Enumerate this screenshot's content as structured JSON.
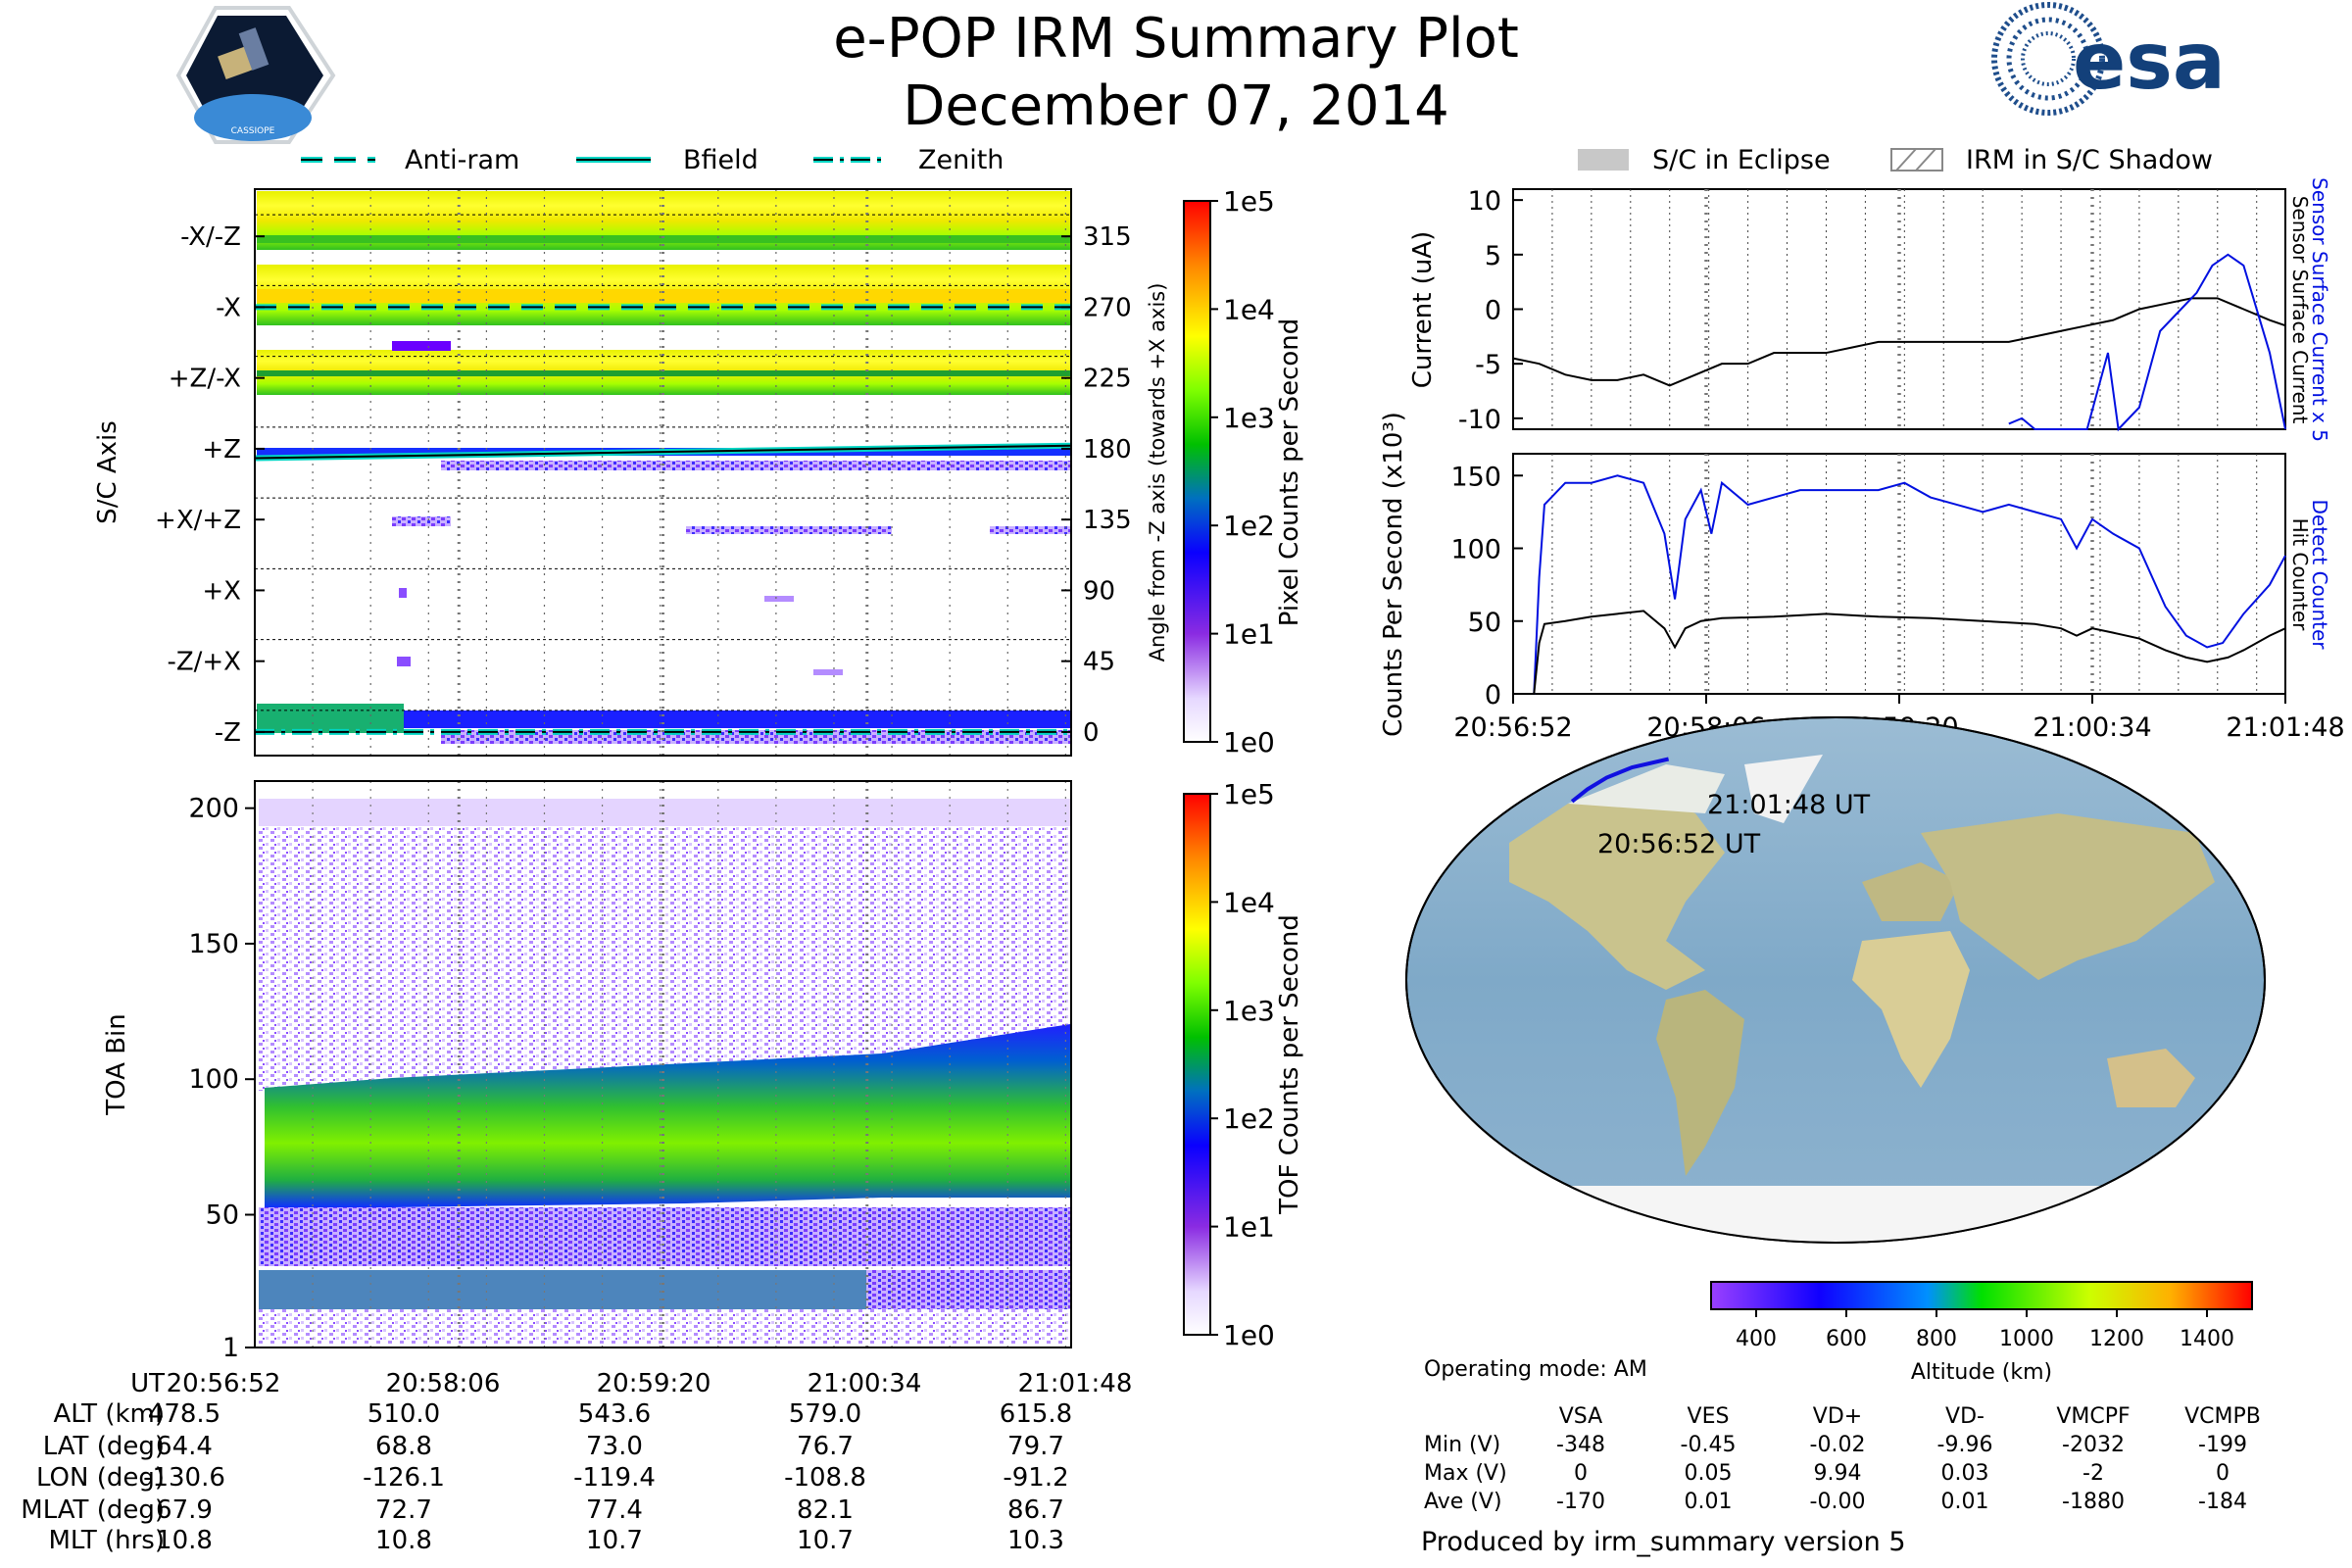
{
  "header": {
    "title": "e-POP IRM Summary Plot",
    "date": "December 07, 2014",
    "logo_left_text": "CASSIOPE",
    "logo_right_text": "esa"
  },
  "legends": {
    "left": [
      "Anti-ram",
      "Bfield",
      "Zenith"
    ],
    "right": [
      "S/C in Eclipse",
      "IRM in S/C Shadow"
    ]
  },
  "colors": {
    "cyan": "#00d5c3",
    "blue_trace": "#0010e0",
    "black_trace": "#000000",
    "shade": "#c8c8c8"
  },
  "chart_data": [
    {
      "type": "heatmap",
      "name": "pixel-angle",
      "ylabel": "S/C Axis",
      "y_tick_labels": [
        "-X/-Z",
        "-X",
        "+Z/-X",
        "+Z",
        "+X/+Z",
        "+X",
        "-Z/+X",
        "-Z"
      ],
      "y2_label": "Angle from -Z axis (towards +X axis)",
      "y2_ticks": [
        315,
        270,
        225,
        180,
        135,
        90,
        45,
        0
      ],
      "ylim": [
        -15,
        345
      ],
      "x_range_seconds": [
        0,
        296
      ],
      "x_tick_seconds": [
        0,
        74,
        148,
        222,
        296
      ],
      "colorbar": {
        "label": "Pixel Counts per Second",
        "scale": "log",
        "ticks": [
          "1e0",
          "1e1",
          "1e2",
          "1e3",
          "1e4",
          "1e5"
        ]
      },
      "lines": {
        "anti_ram_deg": 270,
        "zenith_deg": 0,
        "bfield_deg_start": 174,
        "bfield_deg_end": 182
      }
    },
    {
      "type": "heatmap",
      "name": "toa-spectrogram",
      "ylabel": "TOA Bin",
      "y_ticks": [
        1,
        50,
        100,
        150,
        200
      ],
      "ylim": [
        1,
        210
      ],
      "x_range_seconds": [
        0,
        296
      ],
      "colorbar": {
        "label": "TOF Counts per Second",
        "scale": "log",
        "ticks": [
          "1e0",
          "1e1",
          "1e2",
          "1e3",
          "1e4",
          "1e5"
        ]
      },
      "bands": [
        {
          "bin_start": 58,
          "bin_end": 62,
          "level": "high"
        },
        {
          "bin_start": 25,
          "bin_end": 22,
          "level": "medium"
        }
      ]
    },
    {
      "type": "line",
      "name": "current",
      "ylabel": "Current (uA)",
      "y2label_blue": "Sensor Surface Current x 5",
      "y2label_black": "Sensor Surface Current",
      "yticks": [
        10,
        5,
        0,
        -5,
        -10
      ],
      "ylim": [
        -11,
        11
      ],
      "x_range_seconds": [
        0,
        296
      ],
      "series": [
        {
          "name": "Sensor Surface Current",
          "color": "black",
          "x": [
            0,
            10,
            20,
            30,
            40,
            50,
            60,
            70,
            80,
            90,
            100,
            110,
            120,
            130,
            140,
            150,
            160,
            170,
            180,
            190,
            200,
            210,
            220,
            230,
            240,
            250,
            260,
            270,
            280,
            290,
            296
          ],
          "values": [
            -4.5,
            -5,
            -6,
            -6.5,
            -6.5,
            -6,
            -7,
            -6,
            -5,
            -5,
            -4,
            -4,
            -4,
            -3.5,
            -3,
            -3,
            -3,
            -3,
            -3,
            -3,
            -2.5,
            -2,
            -1.5,
            -1,
            0,
            0.5,
            1,
            1,
            0,
            -1,
            -1.5
          ]
        },
        {
          "name": "Sensor Surface Current x 5",
          "color": "blue",
          "x": [
            190,
            195,
            200,
            210,
            220,
            228,
            232,
            240,
            248,
            256,
            262,
            268,
            274,
            280,
            290,
            296
          ],
          "values": [
            -10.5,
            -10,
            -11,
            -11,
            -11,
            -4,
            -11,
            -9,
            -2,
            0,
            1.5,
            4,
            5,
            4,
            -4,
            -11
          ]
        }
      ]
    },
    {
      "type": "line",
      "name": "counts",
      "ylabel": "Counts Per Second (x10³)",
      "y2label_blue": "Detect Counter",
      "y2label_black": "Hit Counter",
      "yticks": [
        0,
        50,
        100,
        150
      ],
      "ylim": [
        0,
        165
      ],
      "x_range_seconds": [
        0,
        296
      ],
      "xtick_labels": [
        "20:56:52",
        "20:58:06",
        "20:59:20",
        "21:00:34",
        "21:01:48"
      ],
      "series": [
        {
          "name": "Detect Counter",
          "color": "blue",
          "x": [
            0,
            8,
            10,
            12,
            20,
            30,
            40,
            50,
            58,
            62,
            66,
            72,
            76,
            80,
            90,
            100,
            110,
            120,
            130,
            140,
            150,
            160,
            170,
            180,
            190,
            200,
            210,
            216,
            222,
            230,
            240,
            250,
            258,
            266,
            272,
            280,
            290,
            296
          ],
          "values": [
            0,
            0,
            80,
            130,
            145,
            145,
            150,
            145,
            110,
            65,
            120,
            140,
            110,
            145,
            130,
            135,
            140,
            140,
            140,
            140,
            145,
            135,
            130,
            125,
            130,
            125,
            120,
            100,
            120,
            110,
            100,
            60,
            40,
            32,
            35,
            55,
            75,
            95
          ]
        },
        {
          "name": "Hit Counter",
          "color": "black",
          "x": [
            0,
            8,
            10,
            12,
            20,
            30,
            40,
            50,
            58,
            62,
            66,
            72,
            80,
            100,
            120,
            140,
            160,
            180,
            200,
            210,
            216,
            222,
            230,
            240,
            250,
            258,
            266,
            274,
            280,
            290,
            296
          ],
          "values": [
            0,
            0,
            35,
            48,
            50,
            53,
            55,
            57,
            45,
            32,
            45,
            50,
            52,
            53,
            55,
            53,
            52,
            50,
            48,
            45,
            40,
            45,
            42,
            38,
            30,
            25,
            22,
            25,
            30,
            40,
            45
          ]
        }
      ]
    },
    {
      "type": "scatter",
      "name": "ground-track",
      "labels": [
        "21:01:48 UT",
        "20:56:52 UT"
      ],
      "track": {
        "lon": [
          -130.6,
          -126.1,
          -119.4,
          -108.8,
          -91.2
        ],
        "lat": [
          64.4,
          68.8,
          73.0,
          76.7,
          79.7
        ]
      },
      "colorbar": {
        "label": "Altitude (km)",
        "ticks": [
          400,
          600,
          800,
          1000,
          1200,
          1400
        ],
        "range": [
          300,
          1500
        ]
      }
    }
  ],
  "ephemeris": {
    "row_labels": [
      "UT",
      "ALT (km)",
      "LAT (deg)",
      "LON (deg)",
      "MLAT (deg)",
      "MLT (hrs)"
    ],
    "columns": [
      [
        "20:56:52",
        "478.5",
        "64.4",
        "-130.6",
        "67.9",
        "10.8"
      ],
      [
        "20:58:06",
        "510.0",
        "68.8",
        "-126.1",
        "72.7",
        "10.8"
      ],
      [
        "20:59:20",
        "543.6",
        "73.0",
        "-119.4",
        "77.4",
        "10.7"
      ],
      [
        "21:00:34",
        "579.0",
        "76.7",
        "-108.8",
        "82.1",
        "10.7"
      ],
      [
        "21:01:48",
        "615.8",
        "79.7",
        "-91.2",
        "86.7",
        "10.3"
      ]
    ]
  },
  "voltages": {
    "operating_mode": "Operating mode: AM",
    "headers": [
      "VSA",
      "VES",
      "VD+",
      "VD-",
      "VMCPF",
      "VCMPB"
    ],
    "rows": [
      {
        "label": "Min (V)",
        "values": [
          "-348",
          "-0.45",
          "-0.02",
          "-9.96",
          "-2032",
          "-199"
        ]
      },
      {
        "label": "Max (V)",
        "values": [
          "0",
          "0.05",
          "9.94",
          "0.03",
          "-2",
          "0"
        ]
      },
      {
        "label": "Ave (V)",
        "values": [
          "-170",
          "0.01",
          "-0.00",
          "0.01",
          "-1880",
          "-184"
        ]
      }
    ],
    "footer": "Produced by irm_summary version 5"
  }
}
